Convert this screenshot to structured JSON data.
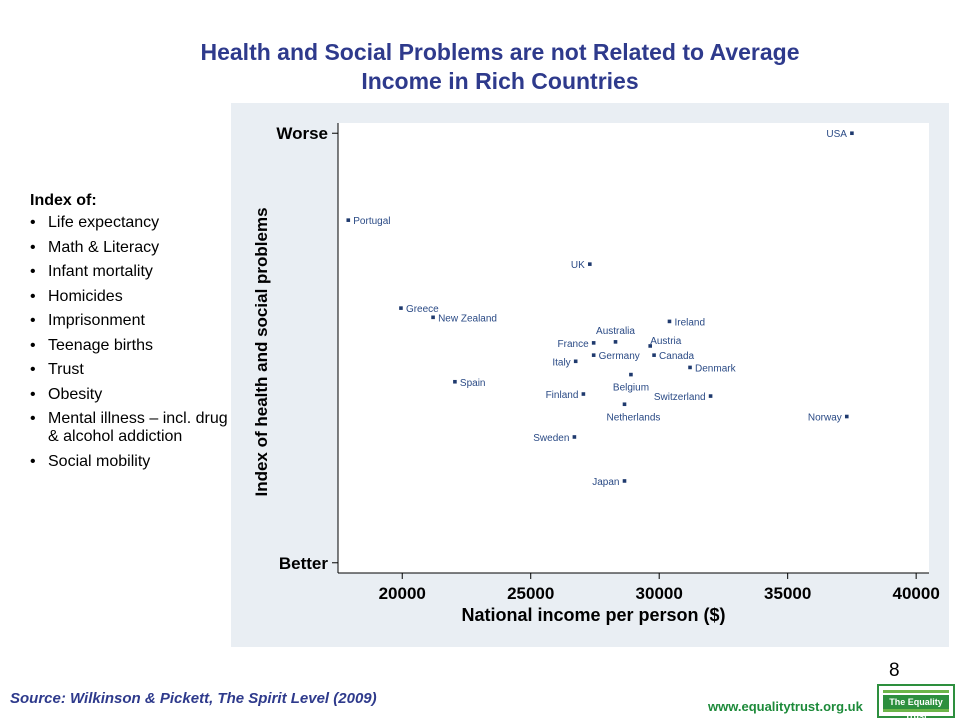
{
  "title_line1": "Health and Social Problems are not Related to Average",
  "title_line2": "Income in Rich Countries",
  "index_panel": {
    "heading": "Index of:",
    "items": [
      "Life expectancy",
      "Math & Literacy",
      "Infant mortality",
      "Homicides",
      "Imprisonment",
      "Teenage births",
      "Trust",
      "Obesity",
      "Mental illness – incl. drug & alcohol addiction",
      "Social mobility"
    ]
  },
  "chart_data": {
    "type": "scatter",
    "xlabel": "National income per person ($)",
    "ylabel": "Index of health and social problems",
    "xlim": [
      17500,
      40500
    ],
    "xticks": [
      20000,
      25000,
      30000,
      35000,
      40000
    ],
    "ylim": [
      -1.6,
      2.8
    ],
    "ytick_labels": {
      "top": "Worse",
      "bottom": "Better"
    },
    "ytick_values": {
      "top": 2.7,
      "bottom": -1.5
    },
    "grid": false,
    "point_color": "#1f3a6e",
    "label_color": "#2a4a85",
    "points": [
      {
        "country": "USA",
        "x": 37500,
        "y": 2.7,
        "label_side": "left"
      },
      {
        "country": "Portugal",
        "x": 17900,
        "y": 1.85,
        "label_side": "right"
      },
      {
        "country": "UK",
        "x": 27300,
        "y": 1.42,
        "label_side": "left"
      },
      {
        "country": "Greece",
        "x": 19950,
        "y": 0.99,
        "label_side": "right"
      },
      {
        "country": "New Zealand",
        "x": 21200,
        "y": 0.9,
        "label_side": "right"
      },
      {
        "country": "Ireland",
        "x": 30400,
        "y": 0.86,
        "label_side": "right"
      },
      {
        "country": "France",
        "x": 27450,
        "y": 0.65,
        "label_side": "left"
      },
      {
        "country": "Australia",
        "x": 28300,
        "y": 0.66,
        "label_side": "top"
      },
      {
        "country": "Austria",
        "x": 29650,
        "y": 0.62,
        "label_side": "topright"
      },
      {
        "country": "Germany",
        "x": 27450,
        "y": 0.53,
        "label_side": "right"
      },
      {
        "country": "Canada",
        "x": 29800,
        "y": 0.53,
        "label_side": "right"
      },
      {
        "country": "Italy",
        "x": 26750,
        "y": 0.47,
        "label_side": "left"
      },
      {
        "country": "Denmark",
        "x": 31200,
        "y": 0.41,
        "label_side": "right"
      },
      {
        "country": "Spain",
        "x": 22050,
        "y": 0.27,
        "label_side": "right"
      },
      {
        "country": "Belgium",
        "x": 28900,
        "y": 0.34,
        "label_side": "belowcenter"
      },
      {
        "country": "Finland",
        "x": 27050,
        "y": 0.15,
        "label_side": "left"
      },
      {
        "country": "Switzerland",
        "x": 32000,
        "y": 0.13,
        "label_side": "left"
      },
      {
        "country": "Netherlands",
        "x": 28650,
        "y": 0.05,
        "label_side": "belowcenter"
      },
      {
        "country": "Norway",
        "x": 37300,
        "y": -0.07,
        "label_side": "left"
      },
      {
        "country": "Sweden",
        "x": 26700,
        "y": -0.27,
        "label_side": "left"
      },
      {
        "country": "Japan",
        "x": 28650,
        "y": -0.7,
        "label_side": "left"
      }
    ]
  },
  "page_number": "8",
  "source": "Source: Wilkinson & Pickett, The Spirit Level (2009)",
  "website": "www.equalitytrust.org.uk",
  "logo_text": "The Equality Trust"
}
